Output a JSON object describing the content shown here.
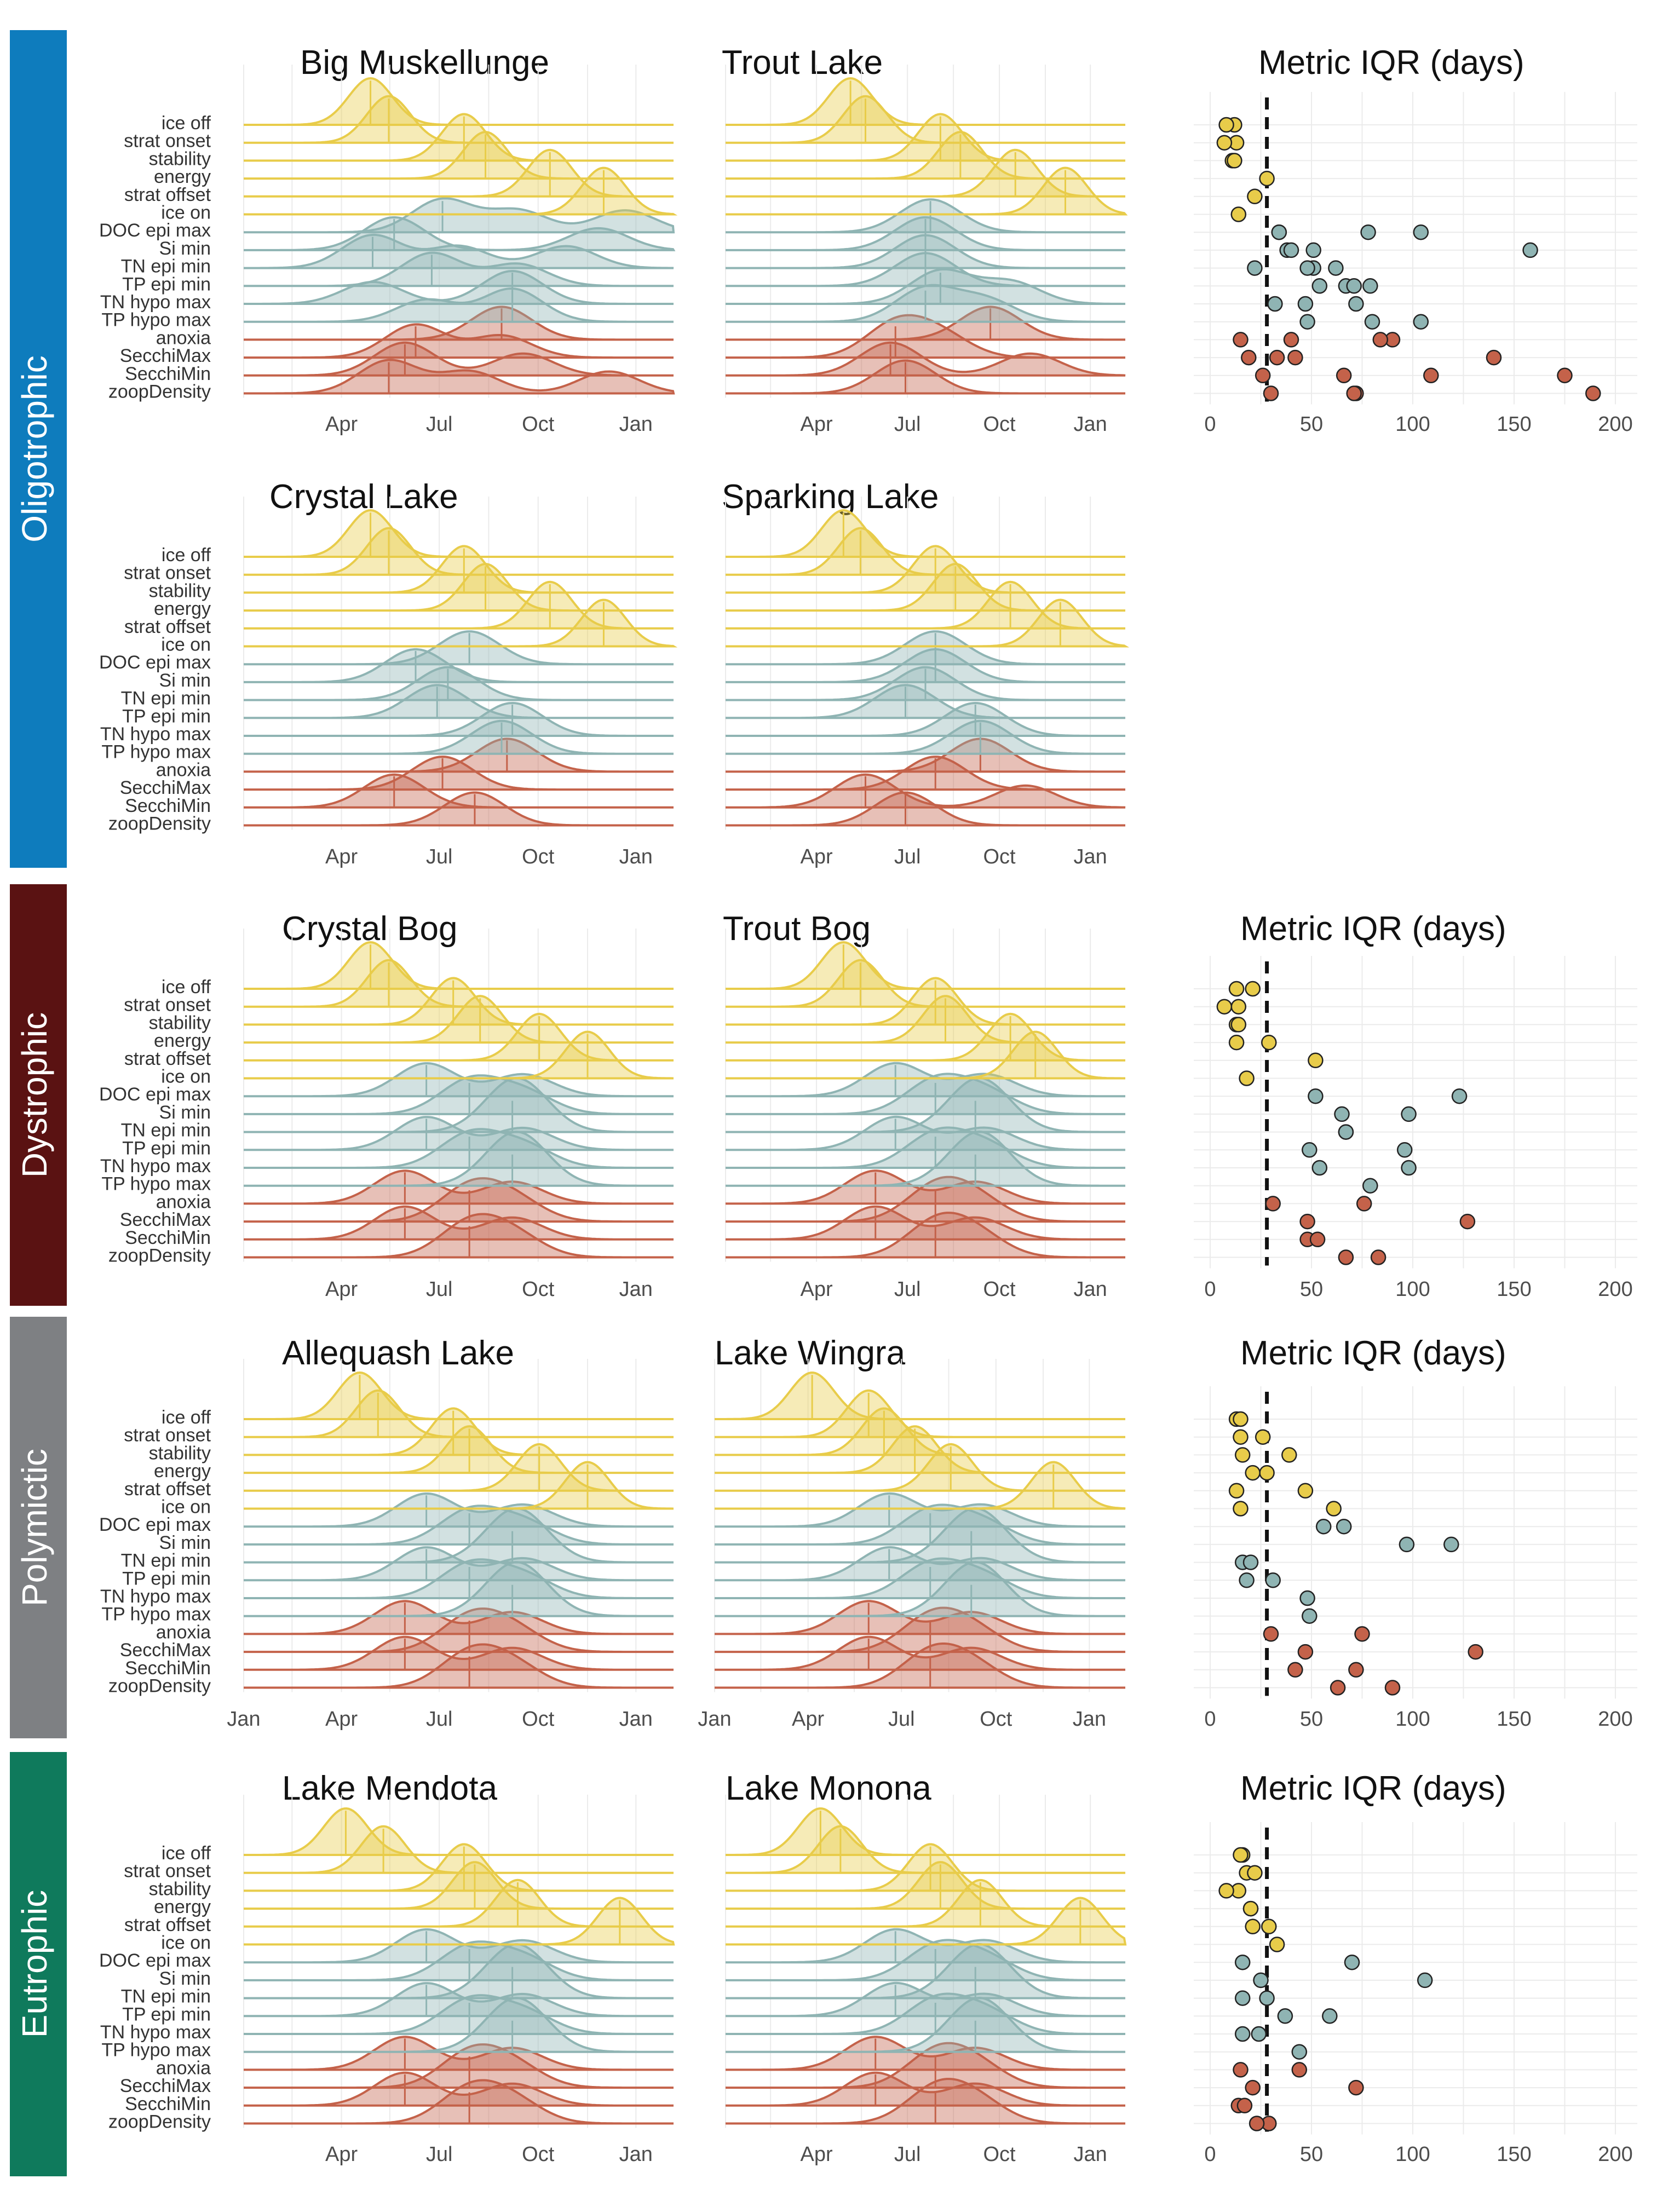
{
  "colors": {
    "physical": "#E8CC4A",
    "chemical": "#8FB4B3",
    "biological": "#C4624A",
    "Oligotrophic": "#0E7CBD",
    "Dystrophic": "#5A1212",
    "Polymictic": "#7E8083",
    "Eutrophic": "#0F7A5C"
  },
  "metrics": [
    "ice off",
    "strat onset",
    "stability",
    "energy",
    "strat offset",
    "ice on",
    "DOC epi max",
    "Si min",
    "TN epi min",
    "TP epi min",
    "TN hypo max",
    "TP hypo max",
    "anoxia",
    "SecchiMax",
    "SecchiMin",
    "zoopDensity"
  ],
  "metric_groups": [
    "physical",
    "physical",
    "physical",
    "physical",
    "physical",
    "physical",
    "chemical",
    "chemical",
    "chemical",
    "chemical",
    "chemical",
    "chemical",
    "biological",
    "biological",
    "biological",
    "biological"
  ],
  "month_ticks": [
    "Jan",
    "Apr",
    "Jul",
    "Oct",
    "Jan"
  ],
  "iqr_ticks": [
    "0",
    "50",
    "100",
    "150",
    "200"
  ],
  "iqr_title": "Metric IQR (days)",
  "chart_data": [
    {
      "type": "ridgeline",
      "group": "Oligotrophic",
      "panels": [
        {
          "lake": "Big Muskellunge",
          "month_ticks_shown": [
            "Apr",
            "Jul",
            "Oct",
            "Jan"
          ],
          "peaks_doy": [
            {
              "ice off": 118
            },
            {
              "strat onset": 135
            },
            {
              "stability": 205
            },
            {
              "energy": 225
            },
            {
              "strat offset": 285
            },
            {
              "ice on": 335
            },
            {
              "DOC epi max": [
                185,
                255,
                355
              ]
            },
            {
              "Si min": [
                140,
                330
              ]
            },
            {
              "TN epi min": [
                120,
                200,
                300
              ]
            },
            {
              "TP epi min": [
                175,
                255
              ]
            },
            {
              "TN hypo max": [
                250,
                120
              ]
            },
            {
              "TP hypo max": [
                250,
                170
              ]
            },
            {
              "anoxia": [
                240
              ]
            },
            {
              "SecchiMax": [
                160,
                240
              ]
            },
            {
              "SecchiMin": [
                150,
                260
              ]
            },
            {
              "zoopDensity": [
                135,
                210,
                340
              ]
            }
          ]
        },
        {
          "lake": "Trout Lake",
          "month_ticks_shown": [
            "Apr",
            "Jul",
            "Oct",
            "Jan"
          ],
          "peaks_doy": [
            {
              "ice off": 125
            },
            {
              "strat onset": 140
            },
            {
              "stability": 215
            },
            {
              "energy": 235
            },
            {
              "strat offset": 290
            },
            {
              "ice on": 340
            },
            {
              "DOC epi max": [
                205
              ]
            },
            {
              "Si min": [
                200
              ]
            },
            {
              "TN epi min": [
                200
              ]
            },
            {
              "TP epi min": [
                200
              ]
            },
            {
              "TN hypo max": [
                215,
                285
              ]
            },
            {
              "TP hypo max": [
                200,
                260
              ]
            },
            {
              "anoxia": [
                265
              ]
            },
            {
              "SecchiMax": [
                170,
                215
              ]
            },
            {
              "SecchiMin": [
                165,
                305
              ]
            },
            {
              "zoopDensity": [
                180
              ]
            }
          ]
        }
      ],
      "iqr": {
        "physical": [
          12,
          13,
          11,
          28,
          22,
          14,
          8,
          7,
          12
        ],
        "chemical": [
          34,
          38,
          51,
          79,
          32,
          48,
          78,
          158,
          22,
          54,
          72,
          80,
          104,
          51,
          62,
          67,
          47,
          104,
          34,
          40,
          48,
          71
        ],
        "biological": [
          15,
          19,
          26,
          30,
          40,
          42,
          66,
          72,
          90,
          140,
          175,
          189,
          84,
          33,
          109,
          71
        ]
      }
    },
    {
      "type": "ridgeline",
      "group": "Oligotrophic",
      "panels": [
        {
          "lake": "Crystal Lake",
          "month_ticks_shown": [
            "Apr",
            "Jul",
            "Oct",
            "Jan"
          ],
          "peaks_doy": [
            {
              "ice off": 118
            },
            {
              "strat onset": 135
            },
            {
              "stability": 205
            },
            {
              "energy": 225
            },
            {
              "strat offset": 285
            },
            {
              "ice on": 335
            },
            {
              "DOC epi max": [
                210
              ]
            },
            {
              "Si min": [
                160
              ]
            },
            {
              "TN epi min": [
                190
              ]
            },
            {
              "TP epi min": [
                180
              ]
            },
            {
              "TN hypo max": [
                250
              ]
            },
            {
              "TP hypo max": [
                240
              ]
            },
            {
              "anoxia": [
                245
              ]
            },
            {
              "SecchiMax": [
                185
              ]
            },
            {
              "SecchiMin": [
                140
              ]
            },
            {
              "zoopDensity": [
                215
              ]
            }
          ]
        },
        {
          "lake": "Sparking Lake",
          "month_ticks_shown": [
            "Apr",
            "Jul",
            "Oct",
            "Jan"
          ],
          "peaks_doy": [
            {
              "ice off": 118
            },
            {
              "strat onset": 135
            },
            {
              "stability": 210
            },
            {
              "energy": 230
            },
            {
              "strat offset": 285
            },
            {
              "ice on": 335
            },
            {
              "DOC epi max": [
                210
              ]
            },
            {
              "Si min": [
                210
              ]
            },
            {
              "TN epi min": [
                200
              ]
            },
            {
              "TP epi min": [
                180
              ]
            },
            {
              "TN hypo max": [
                250
              ]
            },
            {
              "TP hypo max": [
                255
              ]
            },
            {
              "anoxia": [
                255
              ]
            },
            {
              "SecchiMax": [
                210
              ]
            },
            {
              "SecchiMin": [
                140,
                300
              ]
            },
            {
              "zoopDensity": [
                180
              ]
            }
          ]
        }
      ]
    },
    {
      "type": "ridgeline",
      "group": "Dystrophic",
      "panels": [
        {
          "lake": "Crystal Bog",
          "month_ticks_shown": [
            "Apr",
            "Jul",
            "Oct",
            "Jan"
          ],
          "peaks_doy": [
            {
              "ice off": 118
            },
            {
              "strat onset": 135
            },
            {
              "stability": 195
            },
            {
              "energy": 220
            },
            {
              "strat offset": 275
            },
            {
              "ice on": 320
            }
          ]
        },
        {
          "lake": "Trout Bog",
          "month_ticks_shown": [
            "Apr",
            "Jul",
            "Oct",
            "Jan"
          ],
          "peaks_doy": [
            {
              "ice off": 118
            },
            {
              "strat onset": 135
            },
            {
              "stability": 210
            },
            {
              "energy": 220
            },
            {
              "strat offset": 285
            },
            {
              "ice on": 310
            }
          ]
        }
      ],
      "iqr": {
        "physical": [
          13,
          14,
          13,
          29,
          52,
          18,
          21,
          7,
          14,
          13
        ],
        "chemical": [
          52,
          98,
          67,
          96,
          54,
          79,
          123,
          65,
          67,
          49,
          98
        ],
        "biological": [
          31,
          48,
          48,
          67,
          76,
          127,
          53,
          83
        ]
      }
    },
    {
      "type": "ridgeline",
      "group": "Polymictic",
      "panels": [
        {
          "lake": "Allequash Lake",
          "month_ticks_shown": [
            "Jan",
            "Apr",
            "Jul",
            "Oct",
            "Jan"
          ],
          "peaks_doy": [
            {
              "ice off": 108
            },
            {
              "strat onset": 125
            },
            {
              "stability": 195
            },
            {
              "energy": 210
            },
            {
              "strat offset": 275
            },
            {
              "ice on": 320
            }
          ]
        },
        {
          "lake": "Lake Wingra",
          "month_ticks_shown": [
            "Jan",
            "Apr",
            "Jul",
            "Oct",
            "Jan"
          ],
          "peaks_doy": [
            {
              "ice off": 95
            },
            {
              "strat onset": 150
            },
            {
              "stability": 165
            },
            {
              "energy": 195
            },
            {
              "strat offset": 230
            },
            {
              "ice on": 330
            }
          ]
        }
      ],
      "iqr": {
        "physical": [
          13,
          15,
          16,
          28,
          47,
          61,
          15,
          26,
          39,
          21,
          13,
          15
        ],
        "chemical": [
          66,
          119,
          16,
          31,
          48,
          49,
          56,
          97,
          20,
          18
        ],
        "biological": [
          30,
          47,
          42,
          63,
          75,
          131,
          72,
          90
        ]
      }
    },
    {
      "type": "ridgeline",
      "group": "Eutrophic",
      "panels": [
        {
          "lake": "Lake Mendota",
          "month_ticks_shown": [
            "Apr",
            "Jul",
            "Oct",
            "Jan"
          ],
          "peaks_doy": [
            {
              "ice off": 95
            },
            {
              "strat onset": 130
            },
            {
              "stability": 205
            },
            {
              "energy": 215
            },
            {
              "strat offset": 255
            },
            {
              "ice on": 350
            }
          ]
        },
        {
          "lake": "Lake Monona",
          "month_ticks_shown": [
            "Apr",
            "Jul",
            "Oct",
            "Jan"
          ],
          "peaks_doy": [
            {
              "ice off": 95
            },
            {
              "strat onset": 115
            },
            {
              "stability": 205
            },
            {
              "energy": 215
            },
            {
              "strat offset": 255
            },
            {
              "ice on": 355
            }
          ]
        }
      ],
      "iqr": {
        "physical": [
          16,
          18,
          14,
          20,
          29,
          33,
          15,
          22,
          8,
          20,
          21
        ],
        "chemical": [
          70,
          106,
          28,
          37,
          16,
          44,
          16,
          25,
          16,
          59,
          24
        ],
        "biological": [
          15,
          21,
          14,
          29,
          44,
          72,
          17,
          23
        ]
      }
    }
  ]
}
